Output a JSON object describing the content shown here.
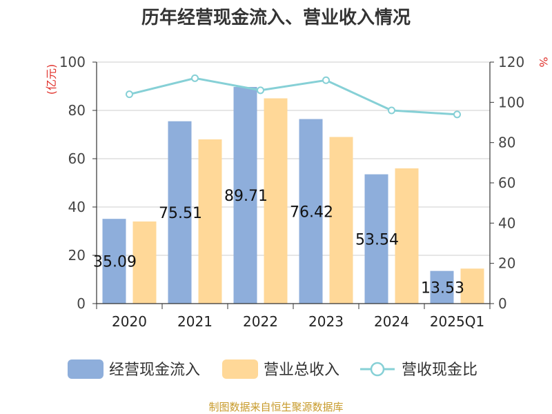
{
  "chart_data": {
    "type": "bar",
    "title": "历年经营现金流入、营业收入情况",
    "categories": [
      "2020",
      "2021",
      "2022",
      "2023",
      "2024",
      "2025Q1"
    ],
    "series": [
      {
        "name": "经营现金流入",
        "type": "bar",
        "axis": "left",
        "values": [
          35.09,
          75.51,
          89.71,
          76.42,
          53.54,
          13.53
        ],
        "labels": [
          "35.09",
          "75.51",
          "89.71",
          "76.42",
          "53.54",
          "13.53"
        ],
        "color": "#8eaedb"
      },
      {
        "name": "营业总收入",
        "type": "bar",
        "axis": "left",
        "values": [
          34.0,
          68.0,
          85.0,
          69.0,
          56.0,
          14.5
        ],
        "color": "#ffd898"
      },
      {
        "name": "营收现金比",
        "type": "line",
        "axis": "right",
        "values": [
          104,
          112,
          106,
          111,
          96,
          94
        ],
        "color": "#86d0d6"
      }
    ],
    "left_axis": {
      "unit": "(亿元)",
      "ylim": [
        0,
        100
      ],
      "ticks": [
        "0",
        "20",
        "40",
        "60",
        "80",
        "100"
      ]
    },
    "right_axis": {
      "unit": "%",
      "ylim": [
        0,
        120
      ],
      "ticks": [
        "0",
        "20",
        "40",
        "60",
        "80",
        "100",
        "120"
      ]
    },
    "grid": true,
    "legend": "bottom"
  },
  "source": "制图数据来自恒生聚源数据库"
}
